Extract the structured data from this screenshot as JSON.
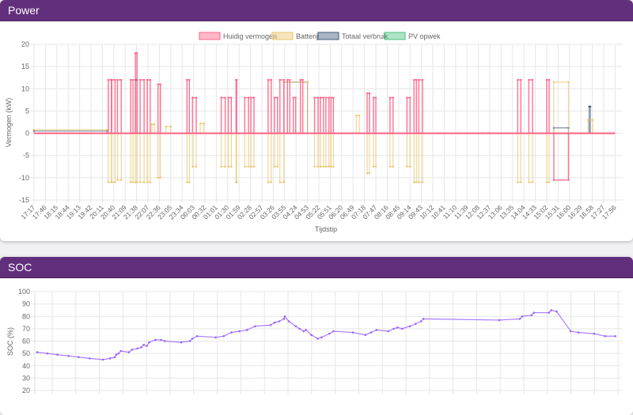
{
  "power": {
    "title": "Power",
    "legend": [
      {
        "label": "Huidig vermogen",
        "color": "#ff6384"
      },
      {
        "label": "Batterij",
        "color": "#e9c46a"
      },
      {
        "label": "Totaal verbruik",
        "color": "#3e5a7a"
      },
      {
        "label": "PV opwek",
        "color": "#4bc07b"
      }
    ]
  },
  "soc": {
    "title": "SOC"
  },
  "chart_data": [
    {
      "type": "line",
      "title": "Power",
      "xlabel": "Tijdstip",
      "ylabel": "Vermogen (kW)",
      "ylim": [
        -15,
        20
      ],
      "yticks": [
        20,
        15,
        10,
        5,
        0,
        -5,
        -10,
        -15
      ],
      "x_unit": "hours since 17:17",
      "xlim": [
        0,
        25
      ],
      "tick_step_hours": 0.48333,
      "xtick_labels": [
        "17:17",
        "17:46",
        "18:15",
        "18:44",
        "19:13",
        "19:42",
        "20:11",
        "20:40",
        "21:09",
        "21:38",
        "22:07",
        "22:36",
        "23:05",
        "23:34",
        "00:03",
        "00:32",
        "01:01",
        "01:30",
        "01:59",
        "02:28",
        "02:57",
        "03:26",
        "03:55",
        "04:24",
        "04:53",
        "05:22",
        "05:51",
        "06:20",
        "06:49",
        "07:18",
        "07:47",
        "08:16",
        "08:45",
        "09:14",
        "09:43",
        "10:12",
        "10:41",
        "11:10",
        "11:39",
        "12:08",
        "12:37",
        "13:06",
        "13:35",
        "14:04",
        "14:33",
        "15:02",
        "15:31",
        "16:00",
        "16:29",
        "16:58",
        "17:27",
        "17:56"
      ],
      "legend_position": "top",
      "grid": true,
      "series": [
        {
          "name": "PV opwek",
          "color": "#4bc07b",
          "segments": [
            [
              19.0,
              19.3,
              0.05
            ],
            [
              22.05,
              22.67,
              -0.1
            ]
          ]
        },
        {
          "name": "Totaal verbruik",
          "color": "#3e5a7a",
          "segments": [
            [
              0,
              3.1,
              0.5
            ],
            [
              4.3,
              4.37,
              12
            ],
            [
              10.6,
              11.6,
              11.5
            ],
            [
              22.05,
              22.67,
              1.2
            ],
            [
              23.55,
              23.6,
              6
            ]
          ]
        },
        {
          "name": "Batterij",
          "color": "#e9c46a",
          "segments": [
            [
              0,
              3.1,
              0.8
            ],
            [
              3.15,
              3.28,
              -11
            ],
            [
              3.3,
              3.44,
              -11
            ],
            [
              3.54,
              3.7,
              -10.5
            ],
            [
              4.1,
              4.2,
              -11
            ],
            [
              4.3,
              4.37,
              -11
            ],
            [
              4.5,
              4.67,
              -11
            ],
            [
              4.8,
              4.93,
              -11
            ],
            [
              5.0,
              5.1,
              2
            ],
            [
              5.26,
              5.36,
              -10
            ],
            [
              5.6,
              5.8,
              1.5
            ],
            [
              6.49,
              6.59,
              -11
            ],
            [
              6.72,
              6.88,
              -7.5
            ],
            [
              7.05,
              7.2,
              2.2
            ],
            [
              7.94,
              8.11,
              -7.5
            ],
            [
              8.24,
              8.37,
              -7.5
            ],
            [
              8.57,
              8.6,
              -11
            ],
            [
              8.94,
              9.1,
              -7.5
            ],
            [
              9.2,
              9.33,
              -7.5
            ],
            [
              9.93,
              10.06,
              -11
            ],
            [
              10.2,
              10.33,
              -7.5
            ],
            [
              10.43,
              10.6,
              -11
            ],
            [
              10.6,
              11.6,
              11.5
            ],
            [
              11.9,
              12.05,
              -7.5
            ],
            [
              12.15,
              12.28,
              -7.5
            ],
            [
              12.38,
              12.51,
              -7.5
            ],
            [
              12.6,
              12.7,
              -7.5
            ],
            [
              13.67,
              13.8,
              4
            ],
            [
              14.13,
              14.23,
              -9
            ],
            [
              14.4,
              14.5,
              -7.5
            ],
            [
              15.1,
              15.23,
              -7.5
            ],
            [
              15.82,
              15.95,
              -7.5
            ],
            [
              16.12,
              16.22,
              -11
            ],
            [
              16.32,
              16.48,
              -11
            ],
            [
              20.52,
              20.65,
              -11
            ],
            [
              20.99,
              21.15,
              -11
            ],
            [
              21.75,
              21.85,
              -11
            ],
            [
              22.05,
              22.67,
              11.5
            ],
            [
              23.5,
              23.7,
              3
            ]
          ]
        },
        {
          "name": "Huidig vermogen",
          "color": "#ff6384",
          "segments": [
            [
              3.15,
              3.28,
              12
            ],
            [
              3.3,
              3.44,
              12
            ],
            [
              3.54,
              3.7,
              12
            ],
            [
              4.1,
              4.2,
              12
            ],
            [
              4.3,
              4.37,
              18
            ],
            [
              4.5,
              4.67,
              12
            ],
            [
              4.8,
              4.93,
              12
            ],
            [
              5.26,
              5.36,
              11
            ],
            [
              6.49,
              6.59,
              12
            ],
            [
              6.72,
              6.88,
              8
            ],
            [
              7.94,
              8.11,
              8
            ],
            [
              8.24,
              8.37,
              8
            ],
            [
              8.57,
              8.6,
              12
            ],
            [
              8.94,
              9.1,
              8
            ],
            [
              9.2,
              9.33,
              8
            ],
            [
              9.93,
              10.06,
              12
            ],
            [
              10.2,
              10.33,
              8
            ],
            [
              10.43,
              10.6,
              12
            ],
            [
              10.75,
              10.85,
              12
            ],
            [
              11.0,
              11.1,
              8
            ],
            [
              11.3,
              11.4,
              12
            ],
            [
              11.9,
              12.05,
              8
            ],
            [
              12.15,
              12.28,
              8
            ],
            [
              12.38,
              12.51,
              8
            ],
            [
              12.6,
              12.7,
              8
            ],
            [
              14.13,
              14.23,
              9
            ],
            [
              14.4,
              14.5,
              8
            ],
            [
              15.1,
              15.23,
              8
            ],
            [
              15.82,
              15.95,
              8
            ],
            [
              16.12,
              16.22,
              12
            ],
            [
              16.32,
              16.48,
              12
            ],
            [
              20.52,
              20.65,
              12
            ],
            [
              20.99,
              21.15,
              12
            ],
            [
              21.75,
              21.85,
              12
            ],
            [
              22.05,
              22.67,
              -10.5
            ]
          ]
        }
      ]
    },
    {
      "type": "line",
      "title": "SOC",
      "ylabel": "SOC (%)",
      "ylim": [
        20,
        100
      ],
      "yticks": [
        100,
        90,
        80,
        70,
        60,
        50,
        40,
        30,
        20
      ],
      "x_unit": "hours since 17:17",
      "xlim": [
        0,
        25
      ],
      "grid": true,
      "series": [
        {
          "name": "SOC",
          "color": "#9966ff",
          "x": [
            0.1,
            0.53,
            0.96,
            1.43,
            1.86,
            2.33,
            2.89,
            3.19,
            3.39,
            3.45,
            3.55,
            3.65,
            3.99,
            4.12,
            4.35,
            4.52,
            4.62,
            4.75,
            4.85,
            5.12,
            5.35,
            5.51,
            6.21,
            6.58,
            6.68,
            6.88,
            7.67,
            8.01,
            8.34,
            8.67,
            9.0,
            9.34,
            10.0,
            10.17,
            10.37,
            10.57,
            10.6,
            10.77,
            11.07,
            11.23,
            11.4,
            11.5,
            11.73,
            12.0,
            12.16,
            12.49,
            12.66,
            13.49,
            14.02,
            14.26,
            14.49,
            14.99,
            15.22,
            15.38,
            15.58,
            15.91,
            16.15,
            16.38,
            16.48,
            19.7,
            20.57,
            20.67,
            21.07,
            21.17,
            21.8,
            21.9,
            22.13,
            22.73,
            23.06,
            23.72,
            24.19,
            24.62
          ],
          "y": [
            51,
            50,
            49,
            48,
            47,
            46,
            45,
            46,
            47,
            49,
            50,
            52,
            51,
            53,
            54,
            55,
            57,
            56,
            59,
            61,
            61,
            60,
            59,
            60,
            62,
            64,
            63,
            64,
            67,
            68,
            69,
            72,
            73,
            75,
            76,
            78,
            80,
            76,
            72,
            70,
            68,
            69,
            65,
            62,
            63,
            66,
            68,
            67,
            65,
            67,
            69,
            68,
            70,
            71,
            70,
            72,
            74,
            76,
            78,
            77,
            78,
            80,
            81,
            83,
            83,
            85,
            84,
            68,
            67,
            66,
            64,
            64
          ]
        }
      ]
    }
  ]
}
